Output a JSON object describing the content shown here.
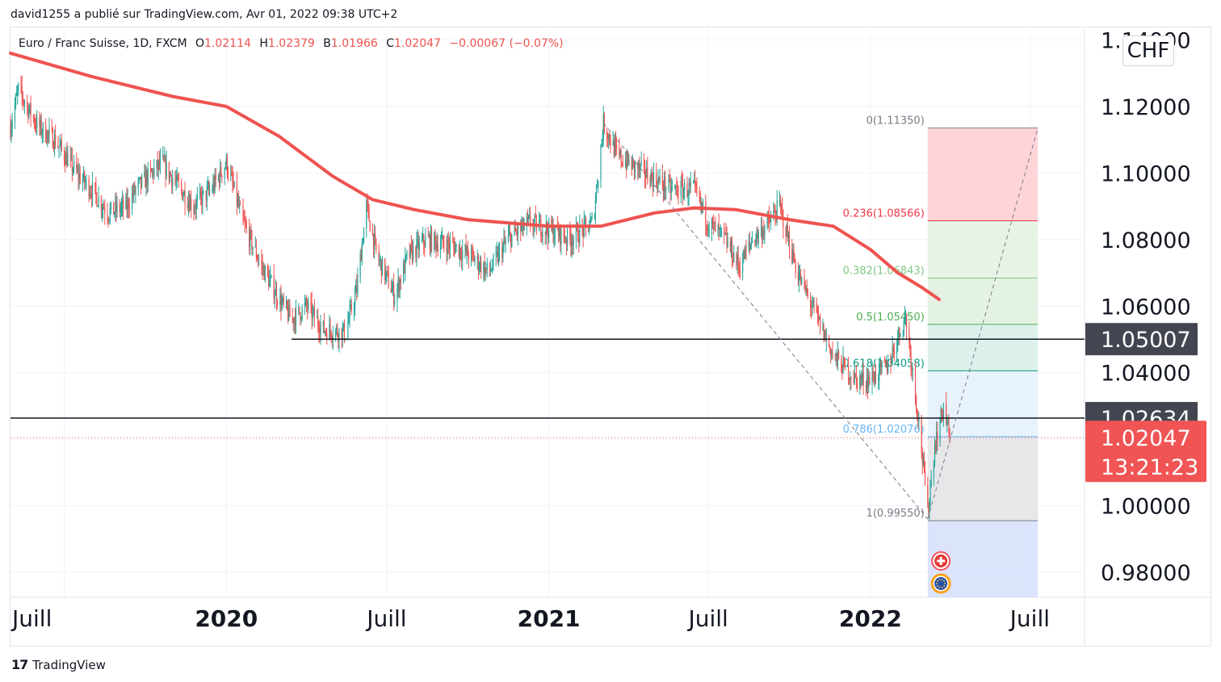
{
  "header": {
    "published_by": "david1255 a publié sur TradingView.com, Avr 01, 2022 09:38 UTC+2"
  },
  "legend": {
    "symbol": "Euro / Franc Suisse, 1D, FXCM",
    "open_label": "O",
    "open": "1.02114",
    "high_label": "H",
    "high": "1.02379",
    "low_label": "B",
    "low": "1.01966",
    "close_label": "C",
    "close": "1.02047",
    "change": "−0.00067 (−0.07%)"
  },
  "currency_badge": "CHF",
  "footer": {
    "brand": "TradingView",
    "logo_mark": "17"
  },
  "colors": {
    "price_up": "#26a69a",
    "price_down": "#ef5350",
    "ma": "#ef5350",
    "fib_0": "#787b86",
    "fib_236": "#f23645",
    "fib_382": "#81c784",
    "fib_5": "#4caf50",
    "fib_618": "#089981",
    "fib_786": "#64b5f6",
    "fib_1": "#787b86"
  },
  "chart_data": {
    "type": "candlestick",
    "symbol": "EURCHF",
    "timeframe": "1D",
    "x_axis": {
      "ticks": [
        "Juill",
        "2020",
        "Juill",
        "2021",
        "Juill",
        "2022",
        "Juill"
      ],
      "bold_ticks": [
        "2020",
        "2021",
        "2022"
      ]
    },
    "y_axis": {
      "ticks": [
        1.14,
        1.12,
        1.1,
        1.08,
        1.06,
        1.04,
        1.02,
        1.0,
        0.98
      ],
      "tick_labels": [
        "1.14000",
        "1.12000",
        "1.10000",
        "1.08000",
        "1.06000",
        "1.04000",
        "1.02000",
        "1.00000",
        "0.98000"
      ],
      "range": [
        0.9725,
        1.1435
      ]
    },
    "price_path": [
      [
        "2019-05-01",
        1.114
      ],
      [
        "2019-05-10",
        1.125
      ],
      [
        "2019-06-01",
        1.114
      ],
      [
        "2019-06-20",
        1.11
      ],
      [
        "2019-07-15",
        1.1
      ],
      [
        "2019-08-01",
        1.095
      ],
      [
        "2019-08-20",
        1.088
      ],
      [
        "2019-09-10",
        1.09
      ],
      [
        "2019-09-20",
        1.095
      ],
      [
        "2019-10-20",
        1.103
      ],
      [
        "2019-11-10",
        1.095
      ],
      [
        "2019-11-25",
        1.09
      ],
      [
        "2019-12-15",
        1.095
      ],
      [
        "2020-01-01",
        1.103
      ],
      [
        "2020-01-20",
        1.085
      ],
      [
        "2020-02-10",
        1.072
      ],
      [
        "2020-03-01",
        1.062
      ],
      [
        "2020-03-15",
        1.056
      ],
      [
        "2020-04-01",
        1.06
      ],
      [
        "2020-04-20",
        1.053
      ],
      [
        "2020-05-15",
        1.052
      ],
      [
        "2020-05-28",
        1.065
      ],
      [
        "2020-06-08",
        1.09
      ],
      [
        "2020-06-20",
        1.075
      ],
      [
        "2020-07-10",
        1.063
      ],
      [
        "2020-07-25",
        1.075
      ],
      [
        "2020-08-15",
        1.08
      ],
      [
        "2020-09-15",
        1.078
      ],
      [
        "2020-10-05",
        1.075
      ],
      [
        "2020-10-25",
        1.07
      ],
      [
        "2020-11-15",
        1.08
      ],
      [
        "2020-12-10",
        1.085
      ],
      [
        "2021-01-01",
        1.083
      ],
      [
        "2021-01-25",
        1.08
      ],
      [
        "2021-02-20",
        1.085
      ],
      [
        "2021-03-04",
        1.115
      ],
      [
        "2021-03-20",
        1.105
      ],
      [
        "2021-04-20",
        1.1
      ],
      [
        "2021-05-20",
        1.095
      ],
      [
        "2021-06-15",
        1.095
      ],
      [
        "2021-07-01",
        1.085
      ],
      [
        "2021-07-20",
        1.08
      ],
      [
        "2021-08-05",
        1.072
      ],
      [
        "2021-08-20",
        1.08
      ],
      [
        "2021-09-08",
        1.085
      ],
      [
        "2021-09-20",
        1.09
      ],
      [
        "2021-10-10",
        1.07
      ],
      [
        "2021-10-30",
        1.058
      ],
      [
        "2021-11-20",
        1.045
      ],
      [
        "2021-12-15",
        1.038
      ],
      [
        "2022-01-01",
        1.038
      ],
      [
        "2022-01-20",
        1.042
      ],
      [
        "2022-02-10",
        1.057
      ],
      [
        "2022-02-25",
        1.025
      ],
      [
        "2022-03-07",
        0.998
      ],
      [
        "2022-03-15",
        1.018
      ],
      [
        "2022-03-25",
        1.03
      ],
      [
        "2022-04-01",
        1.0205
      ]
    ],
    "moving_average": [
      [
        "2019-05-01",
        1.136
      ],
      [
        "2019-08-01",
        1.129
      ],
      [
        "2019-11-01",
        1.123
      ],
      [
        "2020-01-01",
        1.12
      ],
      [
        "2020-03-01",
        1.111
      ],
      [
        "2020-05-01",
        1.099
      ],
      [
        "2020-06-15",
        1.092
      ],
      [
        "2020-08-01",
        1.089
      ],
      [
        "2020-10-01",
        1.086
      ],
      [
        "2021-01-01",
        1.084
      ],
      [
        "2021-03-01",
        1.084
      ],
      [
        "2021-05-01",
        1.088
      ],
      [
        "2021-06-15",
        1.0895
      ],
      [
        "2021-08-01",
        1.089
      ],
      [
        "2021-10-01",
        1.086
      ],
      [
        "2021-11-20",
        1.084
      ],
      [
        "2022-01-01",
        1.077
      ],
      [
        "2022-02-01",
        1.07
      ],
      [
        "2022-03-01",
        1.0655
      ],
      [
        "2022-03-20",
        1.062
      ]
    ],
    "horizontal_lines": [
      {
        "value": 1.05007,
        "label": "1.05007",
        "start": "2020-03-15"
      },
      {
        "value": 1.02634,
        "label": "1.02634",
        "start": "2019-05-01"
      }
    ],
    "last_price": {
      "value": 1.02047,
      "label": "1.02047",
      "countdown": "13:21:23"
    },
    "fibonacci": {
      "start": "2022-03-07",
      "end": "2022-07-10",
      "levels": [
        {
          "ratio": "0",
          "value": 1.1135,
          "label": "0(1.11350)",
          "fill": "#ffcdd2"
        },
        {
          "ratio": "0.236",
          "value": 1.08566,
          "label": "0.236(1.08566)",
          "fill": "#e3f2e1"
        },
        {
          "ratio": "0.382",
          "value": 1.06843,
          "label": "0.382(1.06843)",
          "fill": "#dff0df"
        },
        {
          "ratio": "0.5",
          "value": 1.0545,
          "label": "0.5(1.05450)",
          "fill": "#d6eee8"
        },
        {
          "ratio": "0.618",
          "value": 1.04058,
          "label": "0.618(1.04058)",
          "fill": "#e3f0fc"
        },
        {
          "ratio": "0.786",
          "value": 1.02076,
          "label": "0.786(1.02076)",
          "fill": "#e3e3e6"
        },
        {
          "ratio": "1",
          "value": 0.9955,
          "label": "1(0.99550)",
          "fill": "#d6dffb"
        }
      ]
    },
    "trend_lines": [
      {
        "from": [
          "2021-03-04",
          1.115
        ],
        "to": [
          "2022-03-07",
          0.996
        ]
      },
      {
        "from": [
          "2022-03-07",
          0.996
        ],
        "to": [
          "2022-07-10",
          1.1135
        ]
      }
    ],
    "events": [
      {
        "date": "2022-03-22",
        "icon": "swiss-flag-icon"
      },
      {
        "date": "2022-03-22",
        "icon": "eu-flag-icon"
      }
    ]
  }
}
